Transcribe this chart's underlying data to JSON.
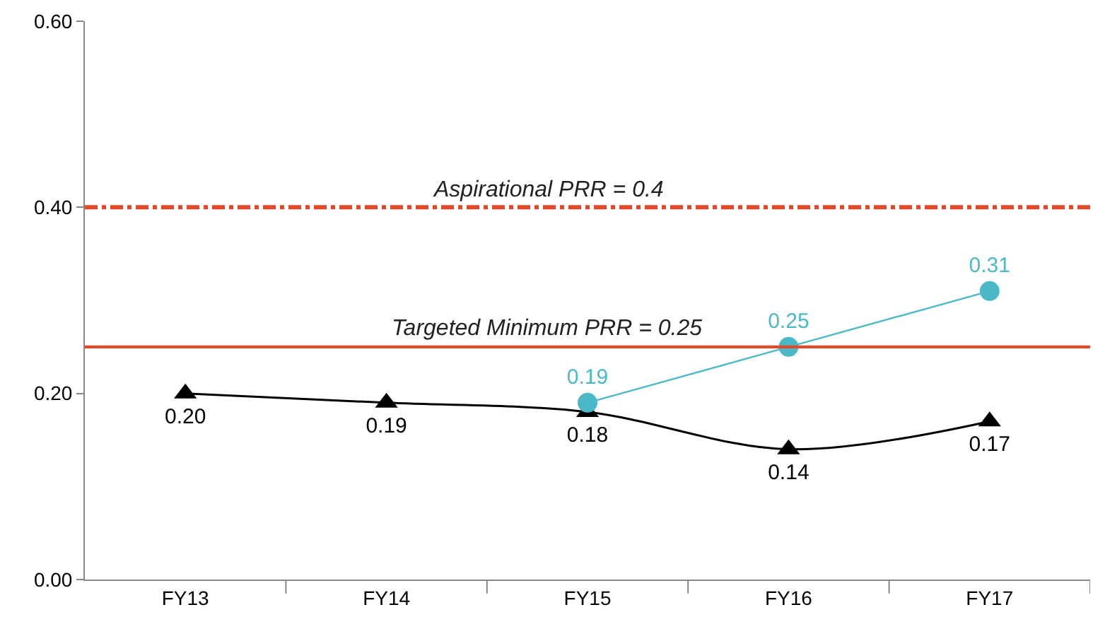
{
  "chart_data": {
    "type": "line",
    "categories": [
      "FY13",
      "FY14",
      "FY15",
      "FY16",
      "FY17"
    ],
    "series": [
      {
        "color": "#000000",
        "marker": "triangle",
        "values": [
          0.2,
          0.19,
          0.18,
          0.14,
          0.17
        ],
        "value_labels": [
          "0.20",
          "0.19",
          "0.18",
          "0.14",
          "0.17"
        ]
      },
      {
        "color": "#4bb8c8",
        "marker": "circle",
        "values": [
          null,
          null,
          0.19,
          0.25,
          0.31
        ],
        "value_labels": [
          null,
          null,
          "0.19",
          "0.25",
          "0.31"
        ]
      }
    ],
    "ylim": [
      0,
      0.6
    ],
    "yticks": [
      {
        "value": 0,
        "label": "0.00"
      },
      {
        "value": 0.2,
        "label": "0.20"
      },
      {
        "value": 0.4,
        "label": "0.40"
      },
      {
        "value": 0.6,
        "label": "0.60"
      }
    ],
    "ref_lines": [
      {
        "axis": "y",
        "value": 0.4,
        "label": "Aspirational PRR = 0.4",
        "color": "#e0492a",
        "line_style": "dashdot"
      },
      {
        "axis": "y",
        "value": 0.25,
        "label": "Targeted Minimum PRR = 0.25",
        "color": "#e0492a",
        "line_style": "solid"
      }
    ],
    "grid": false,
    "legend": false
  }
}
